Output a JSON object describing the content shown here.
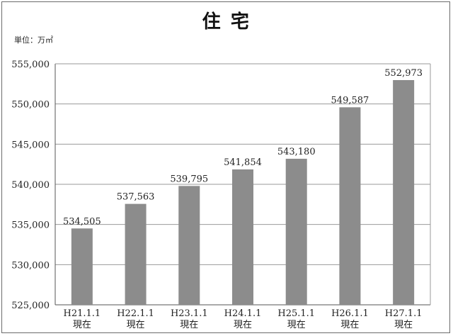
{
  "title": "住 宅",
  "unit_label": "単位：万㎡",
  "chart_data": {
    "type": "bar",
    "title": "住 宅",
    "ylabel": "単位：万㎡",
    "xlabel": "",
    "ylim": [
      525000,
      555000
    ],
    "yticks": [
      "525,000",
      "530,000",
      "535,000",
      "540,000",
      "545,000",
      "550,000",
      "555,000"
    ],
    "ytick_values": [
      525000,
      530000,
      535000,
      540000,
      545000,
      550000,
      555000
    ],
    "grid": true,
    "categories": [
      [
        "H21.1.1",
        "現在"
      ],
      [
        "H22.1.1",
        "現在"
      ],
      [
        "H23.1.1",
        "現在"
      ],
      [
        "H24.1.1",
        "現在"
      ],
      [
        "H25.1.1",
        "現在"
      ],
      [
        "H26.1.1",
        "現在"
      ],
      [
        "H27.1.1",
        "現在"
      ]
    ],
    "values": [
      534505,
      537563,
      539795,
      541854,
      543180,
      549587,
      552973
    ],
    "data_labels": [
      "534,505",
      "537,563",
      "539,795",
      "541,854",
      "543,180",
      "549,587",
      "552,973"
    ],
    "bar_color": "#8c8c8c"
  }
}
